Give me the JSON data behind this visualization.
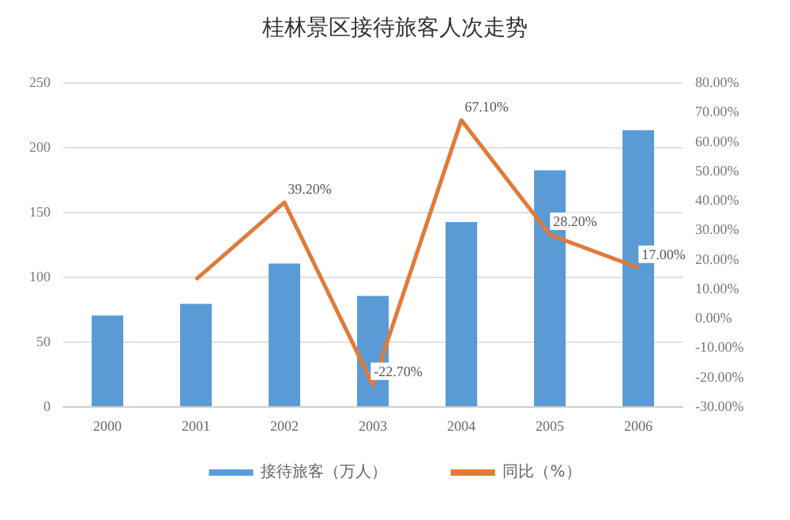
{
  "chart_data": {
    "type": "bar",
    "title": "桂林景区接待旅客人次走势",
    "categories": [
      "2000",
      "2001",
      "2002",
      "2003",
      "2004",
      "2005",
      "2006"
    ],
    "series": [
      {
        "name": "接待旅客（万人）",
        "color": "#5b9bd5",
        "values": [
          70,
          79,
          110,
          85,
          142,
          182,
          213
        ]
      },
      {
        "name": "同比（%）",
        "type": "line",
        "axis": "y2",
        "color": "#e07b39",
        "values": [
          null,
          13,
          39.2,
          -22.7,
          67.1,
          28.2,
          17
        ],
        "value_labels": [
          null,
          null,
          "39.20%",
          "-22.70%",
          "67.10%",
          "28.20%",
          "17.00%"
        ]
      }
    ],
    "ylim": [
      0,
      250
    ],
    "yticks": [
      0,
      50,
      100,
      150,
      200,
      250
    ],
    "y2lim": [
      -30,
      80
    ],
    "y2ticks": [
      {
        "value": -30,
        "label": "-30.00%"
      },
      {
        "value": -20,
        "label": "-20.00%"
      },
      {
        "value": -10,
        "label": "-10.00%"
      },
      {
        "value": 0,
        "label": "0.00%"
      },
      {
        "value": 10,
        "label": "10.00%"
      },
      {
        "value": 20,
        "label": "20.00%"
      },
      {
        "value": 30,
        "label": "30.00%"
      },
      {
        "value": 40,
        "label": "40.00%"
      },
      {
        "value": 50,
        "label": "50.00%"
      },
      {
        "value": 60,
        "label": "60.00%"
      },
      {
        "value": 70,
        "label": "70.00%"
      },
      {
        "value": 80,
        "label": "80.00%"
      }
    ],
    "grid": "y",
    "legend": "bottom",
    "marker": "none",
    "line_style": "solid"
  }
}
